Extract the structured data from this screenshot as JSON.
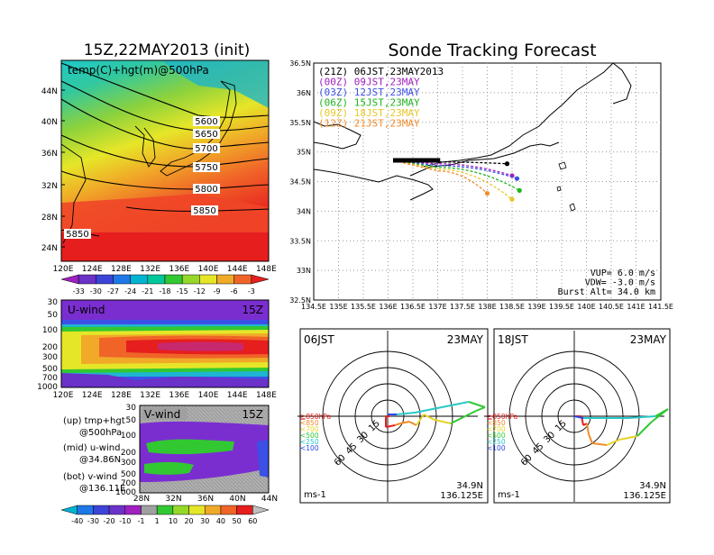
{
  "left_title": "15Z,22MAY2013 (init)",
  "right_title": "Sonde Tracking Forecast",
  "temp_map": {
    "label": "temp(C)+hgt(m)@500hPa",
    "lat_ticks": [
      "44N",
      "40N",
      "36N",
      "32N",
      "28N",
      "24N"
    ],
    "lon_ticks": [
      "120E",
      "124E",
      "128E",
      "132E",
      "136E",
      "140E",
      "144E",
      "148E"
    ],
    "contours": [
      "5600",
      "5650",
      "5700",
      "5750",
      "5800",
      "5850",
      "5850"
    ],
    "colorbar": [
      "-33",
      "-30",
      "-27",
      "-24",
      "-21",
      "-18",
      "-15",
      "-12",
      "-9",
      "-6",
      "-3"
    ],
    "colorbar_colors": [
      "#a020c0",
      "#6a32c8",
      "#3c44d8",
      "#1e78e8",
      "#00b4d2",
      "#00c89a",
      "#32c832",
      "#96d82a",
      "#e6e628",
      "#f0aa28",
      "#f06428",
      "#e61e1e"
    ]
  },
  "u_wind": {
    "label": "U-wind",
    "time": "15Z",
    "p_ticks": [
      "30",
      "50",
      "100",
      "200",
      "300",
      "500",
      "700",
      "1000"
    ],
    "lon_ticks": [
      "120E",
      "124E",
      "128E",
      "132E",
      "136E",
      "140E",
      "144E",
      "148E"
    ]
  },
  "v_wind": {
    "label": "V-wind",
    "time": "15Z",
    "p_ticks": [
      "30",
      "50",
      "100",
      "200",
      "300",
      "500",
      "700",
      "1000"
    ],
    "lat_ticks": [
      "28N",
      "32N",
      "36N",
      "40N",
      "44N"
    ]
  },
  "legend_notes": [
    "(up) tmp+hgt",
    "@500hPa",
    "(mid) u-wind",
    "@34.86N",
    "(bot) v-wind",
    "@136.11E"
  ],
  "wind_colorbar": {
    "labels": [
      "-40",
      "-30",
      "-20",
      "-10",
      "-1",
      "1",
      "10",
      "20",
      "30",
      "40",
      "50",
      "60"
    ],
    "colors": [
      "#00b4d2",
      "#1e78e8",
      "#3c44d8",
      "#6a32c8",
      "#a020c0",
      "#a0a0a0",
      "#32c832",
      "#96d82a",
      "#e6e628",
      "#f0aa28",
      "#f06428",
      "#e61e1e",
      "#c0c0c0"
    ]
  },
  "track_map": {
    "lat_ticks": [
      "36.5N",
      "36N",
      "35.5N",
      "35N",
      "34.5N",
      "34N",
      "33.5N",
      "33N",
      "32.5N"
    ],
    "lon_ticks": [
      "134.5E",
      "135E",
      "135.5E",
      "136E",
      "136.5E",
      "137E",
      "137.5E",
      "138E",
      "138.5E",
      "139E",
      "139.5E",
      "140E",
      "140.5E",
      "141E",
      "141.5E"
    ],
    "launches": [
      {
        "label": "(21Z)  06JST,23MAY2013",
        "color": "#000000"
      },
      {
        "label": "(00Z)  09JST,23MAY",
        "color": "#a020c0"
      },
      {
        "label": "(03Z)  12JST,23MAY",
        "color": "#3c50e6"
      },
      {
        "label": "(06Z)  15JST,23MAY",
        "color": "#1eb41e"
      },
      {
        "label": "(09Z)  18JST,23MAY",
        "color": "#e6c828"
      },
      {
        "label": "(12Z)  21JST,23MAY",
        "color": "#f08c28"
      }
    ],
    "params": [
      "VUP= 6.0 m/s",
      "VDW= -3.0 m/s",
      "Burst Alt= 34.0 km"
    ]
  },
  "hodo_06": {
    "time": "06JST",
    "date": "23MAY",
    "unit": "ms-1",
    "lat": "34.9N",
    "lon": "136.125E"
  },
  "hodo_18": {
    "time": "18JST",
    "date": "23MAY",
    "unit": "ms-1",
    "lat": "34.9N",
    "lon": "136.125E"
  },
  "hodo_rings": [
    "15",
    "30",
    "45",
    "60"
  ],
  "hodo_levels": [
    {
      "label": "≧850hPa",
      "color": "#e61e1e"
    },
    {
      "label": "<850",
      "color": "#f08c28"
    },
    {
      "label": "<700",
      "color": "#e6d228"
    },
    {
      "label": "<500",
      "color": "#32c832"
    },
    {
      "label": "<250",
      "color": "#28c8c8"
    },
    {
      "label": "<100",
      "color": "#2846e6"
    }
  ],
  "chart_data": [
    {
      "type": "heatmap",
      "title": "temp(C)+hgt(m)@500hPa",
      "x": "longitude 120E-150E",
      "y": "latitude 22N-47N",
      "contour_levels": [
        5600,
        5650,
        5700,
        5750,
        5800,
        5850
      ],
      "colorbar_range": [
        -33,
        -3
      ]
    },
    {
      "type": "heatmap",
      "title": "U-wind",
      "x": "longitude 120E-150E",
      "y": "pressure 1000-30 hPa"
    },
    {
      "type": "heatmap",
      "title": "V-wind",
      "x": "latitude 28N-44N",
      "y": "pressure 1000-30 hPa"
    },
    {
      "type": "line",
      "title": "Sonde Tracking Forecast",
      "xlim": [
        134.5,
        141.5
      ],
      "ylim": [
        32.5,
        36.5
      ],
      "series": [
        {
          "name": "(21Z) 06JST,23MAY2013",
          "end": [
            138.4,
            34.8
          ]
        },
        {
          "name": "(00Z) 09JST,23MAY",
          "end": [
            138.5,
            34.6
          ]
        },
        {
          "name": "(03Z) 12JST,23MAY",
          "end": [
            138.6,
            34.55
          ]
        },
        {
          "name": "(06Z) 15JST,23MAY",
          "end": [
            138.65,
            34.35
          ]
        },
        {
          "name": "(09Z) 18JST,23MAY",
          "end": [
            138.5,
            34.2
          ]
        },
        {
          "name": "(12Z) 21JST,23MAY",
          "end": [
            138.0,
            34.3
          ]
        }
      ]
    }
  ]
}
